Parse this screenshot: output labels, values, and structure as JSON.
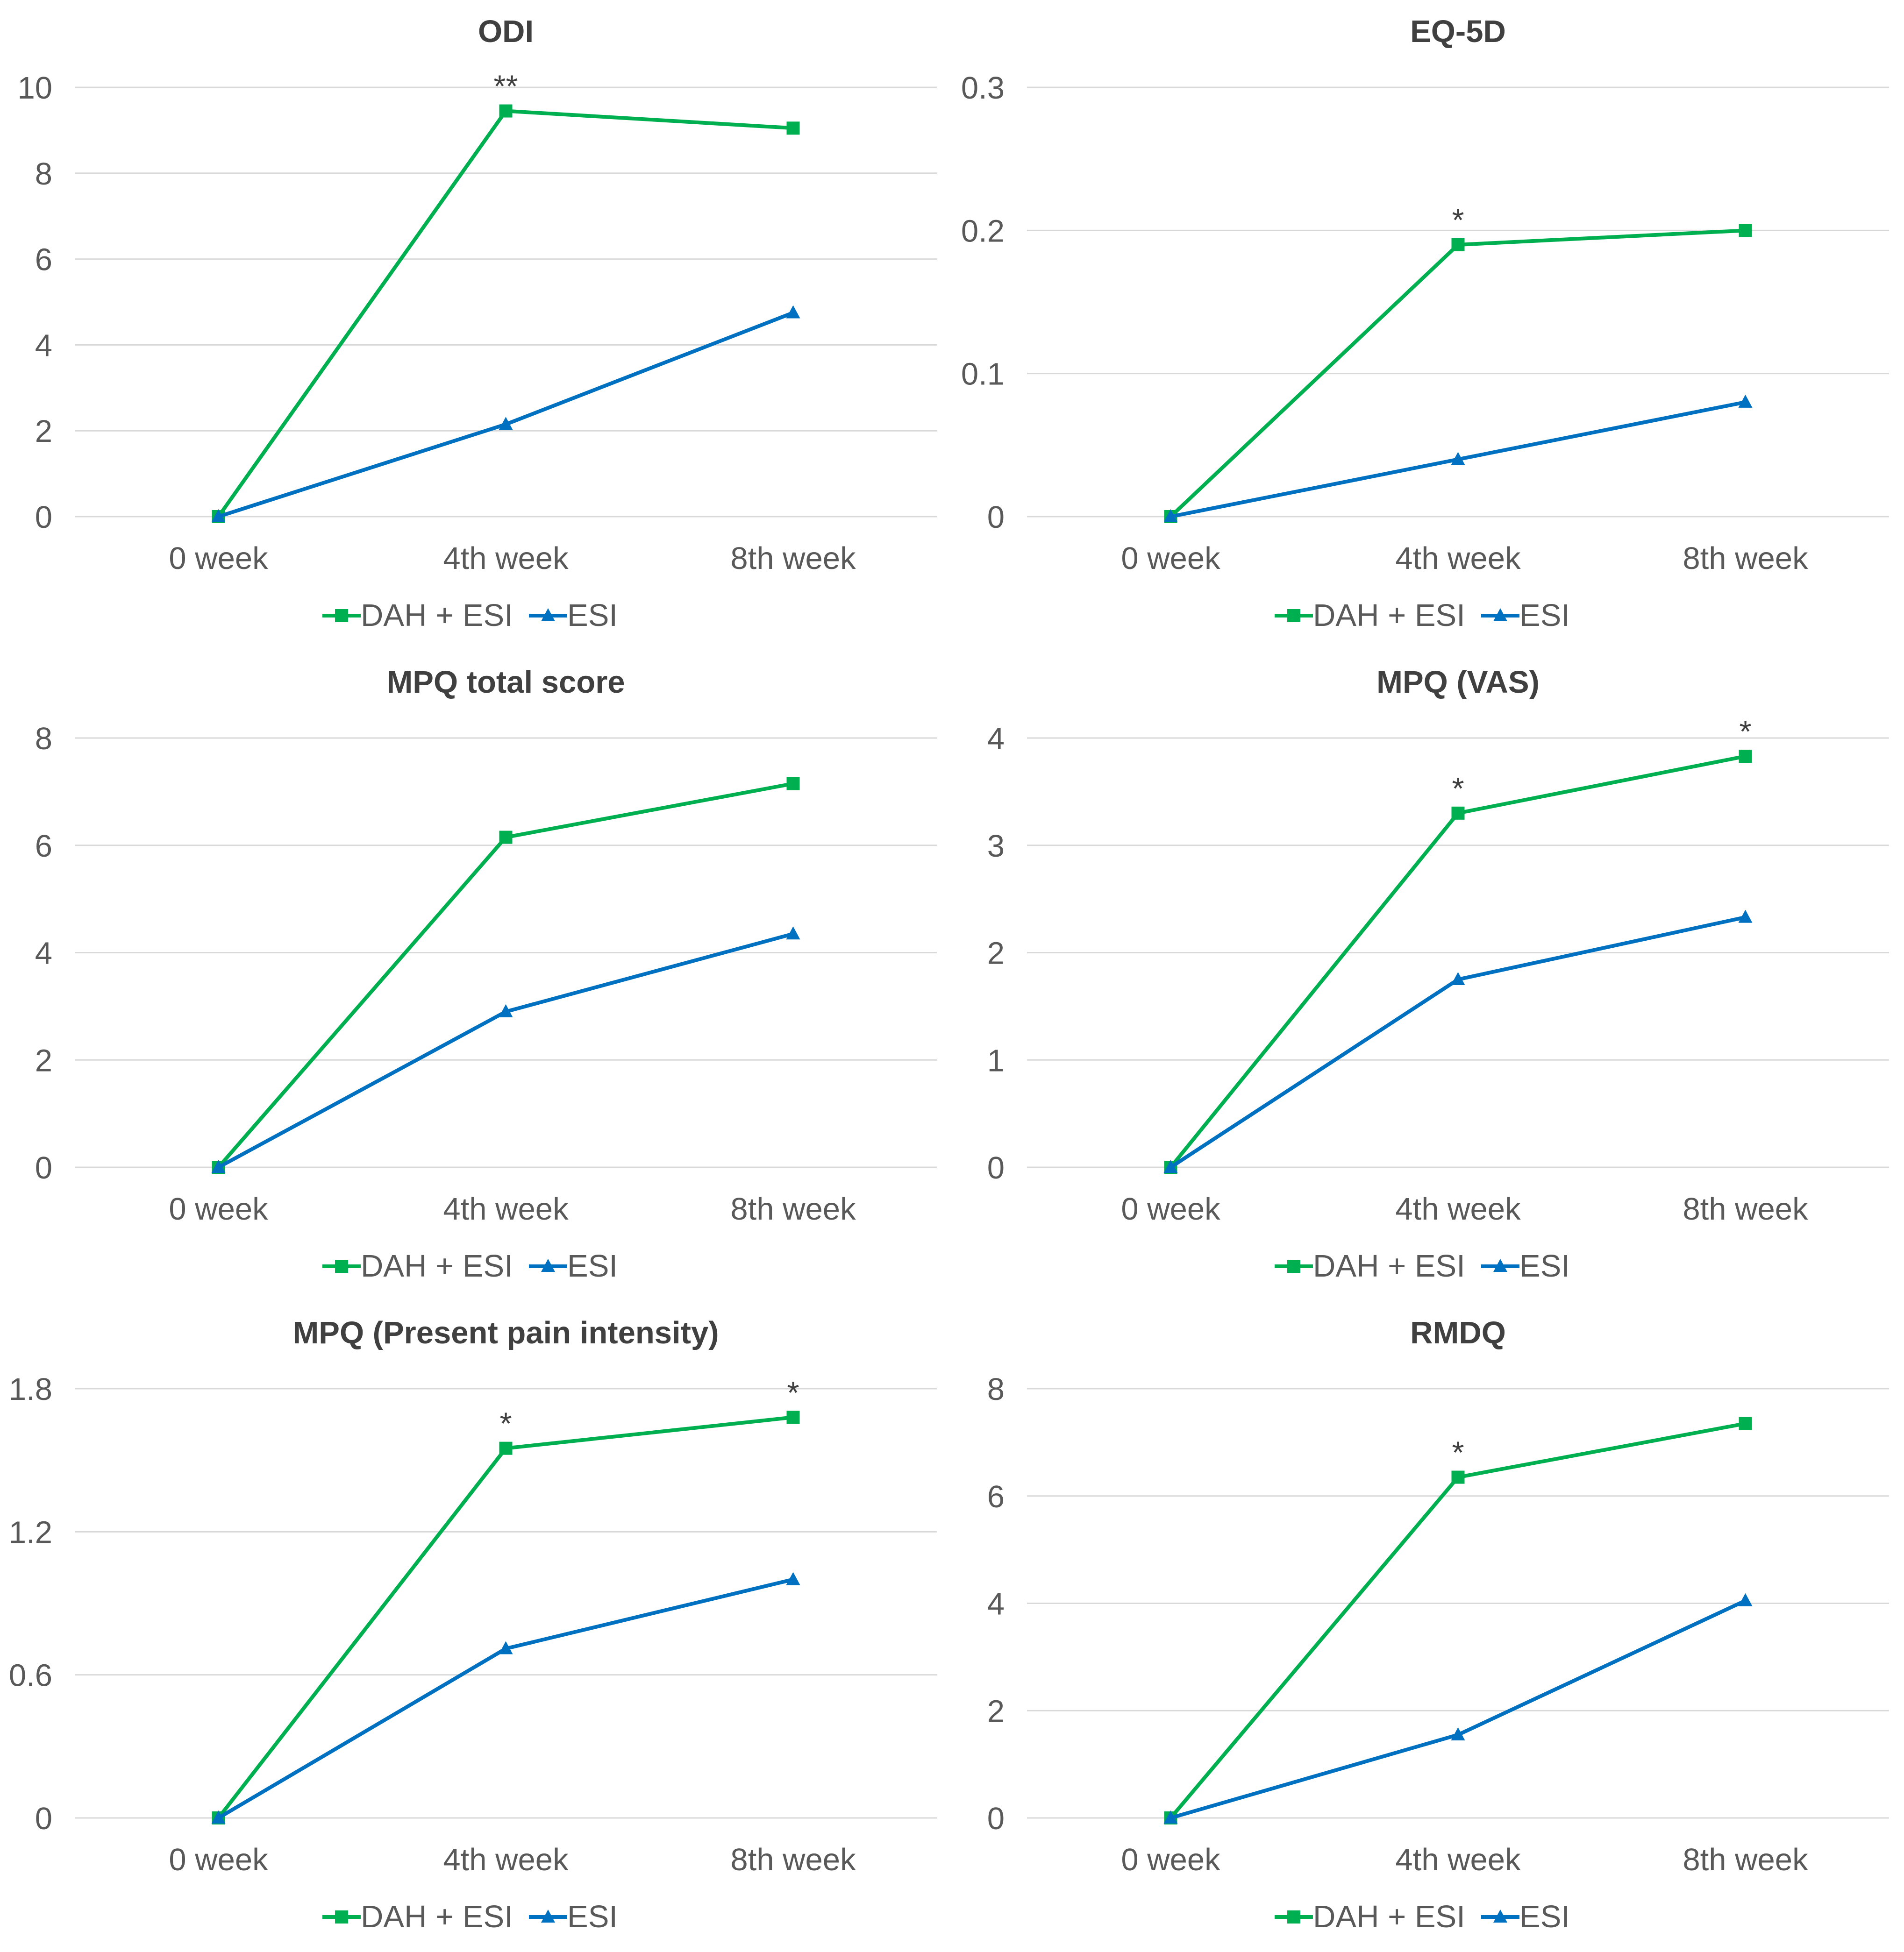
{
  "colors": {
    "dah_esi": "#00B050",
    "esi": "#0070C0",
    "grid": "#D9D9D9",
    "text": "#595959"
  },
  "chart_data": [
    {
      "type": "line",
      "title": "ODI",
      "categories": [
        "0 week",
        "4th week",
        "8th week"
      ],
      "series": [
        {
          "name": "DAH + ESI",
          "marker": "square",
          "values": [
            0,
            9.45,
            9.05
          ]
        },
        {
          "name": "ESI",
          "marker": "triangle",
          "values": [
            0,
            2.15,
            4.75
          ]
        }
      ],
      "ylim": [
        0,
        10
      ],
      "yticks": [
        0,
        2,
        4,
        6,
        8,
        10
      ],
      "ytick_labels": [
        "0",
        "2",
        "4",
        "6",
        "8",
        "10"
      ],
      "annotations": [
        {
          "category": "4th week",
          "y": 9.45,
          "text": "**"
        }
      ],
      "legend": "bottom",
      "xlabel": "",
      "ylabel": ""
    },
    {
      "type": "line",
      "title": "EQ-5D",
      "categories": [
        "0 week",
        "4th week",
        "8th week"
      ],
      "series": [
        {
          "name": "DAH + ESI",
          "marker": "square",
          "values": [
            0,
            0.19,
            0.2
          ]
        },
        {
          "name": "ESI",
          "marker": "triangle",
          "values": [
            0,
            0.04,
            0.08
          ]
        }
      ],
      "ylim": [
        0,
        0.3
      ],
      "yticks": [
        0,
        0.1,
        0.2,
        0.3
      ],
      "ytick_labels": [
        "0",
        "0.1",
        "0.2",
        "0.3"
      ],
      "annotations": [
        {
          "category": "4th week",
          "y": 0.19,
          "text": "*"
        }
      ],
      "legend": "bottom",
      "xlabel": "",
      "ylabel": ""
    },
    {
      "type": "line",
      "title": "MPQ total score",
      "categories": [
        "0 week",
        "4th week",
        "8th week"
      ],
      "series": [
        {
          "name": "DAH + ESI",
          "marker": "square",
          "values": [
            0,
            6.15,
            7.15
          ]
        },
        {
          "name": "ESI",
          "marker": "triangle",
          "values": [
            0,
            2.9,
            4.35
          ]
        }
      ],
      "ylim": [
        0,
        8
      ],
      "yticks": [
        0,
        2,
        4,
        6,
        8
      ],
      "ytick_labels": [
        "0",
        "2",
        "4",
        "6",
        "8"
      ],
      "annotations": [],
      "legend": "bottom",
      "xlabel": "",
      "ylabel": ""
    },
    {
      "type": "line",
      "title": "MPQ (VAS)",
      "categories": [
        "0 week",
        "4th week",
        "8th week"
      ],
      "series": [
        {
          "name": "DAH + ESI",
          "marker": "square",
          "values": [
            0,
            3.3,
            3.83
          ]
        },
        {
          "name": "ESI",
          "marker": "triangle",
          "values": [
            0,
            1.75,
            2.33
          ]
        }
      ],
      "ylim": [
        0,
        4
      ],
      "yticks": [
        0,
        1,
        2,
        3,
        4
      ],
      "ytick_labels": [
        "0",
        "1",
        "2",
        "3",
        "4"
      ],
      "annotations": [
        {
          "category": "4th week",
          "y": 3.3,
          "text": "*"
        },
        {
          "category": "8th week",
          "y": 3.83,
          "text": "*"
        }
      ],
      "legend": "bottom",
      "xlabel": "",
      "ylabel": ""
    },
    {
      "type": "line",
      "title": "MPQ (Present pain intensity)",
      "categories": [
        "0 week",
        "4th week",
        "8th week"
      ],
      "series": [
        {
          "name": "DAH + ESI",
          "marker": "square",
          "values": [
            0,
            1.55,
            1.68
          ]
        },
        {
          "name": "ESI",
          "marker": "triangle",
          "values": [
            0,
            0.71,
            1.0
          ]
        }
      ],
      "ylim": [
        0,
        1.8
      ],
      "yticks": [
        0,
        0.6,
        1.2,
        1.8
      ],
      "ytick_labels": [
        "0",
        "0.6",
        "1.2",
        "1.8"
      ],
      "annotations": [
        {
          "category": "4th week",
          "y": 1.55,
          "text": "*"
        },
        {
          "category": "8th week",
          "y": 1.68,
          "text": "*"
        }
      ],
      "legend": "bottom",
      "xlabel": "",
      "ylabel": ""
    },
    {
      "type": "line",
      "title": "RMDQ",
      "categories": [
        "0 week",
        "4th week",
        "8th week"
      ],
      "series": [
        {
          "name": "DAH + ESI",
          "marker": "square",
          "values": [
            0,
            6.35,
            7.35
          ]
        },
        {
          "name": "ESI",
          "marker": "triangle",
          "values": [
            0,
            1.55,
            4.05
          ]
        }
      ],
      "ylim": [
        0,
        8
      ],
      "yticks": [
        0,
        2,
        4,
        6,
        8
      ],
      "ytick_labels": [
        "0",
        "2",
        "4",
        "6",
        "8"
      ],
      "annotations": [
        {
          "category": "4th week",
          "y": 6.35,
          "text": "*"
        }
      ],
      "legend": "bottom",
      "xlabel": "",
      "ylabel": ""
    }
  ]
}
